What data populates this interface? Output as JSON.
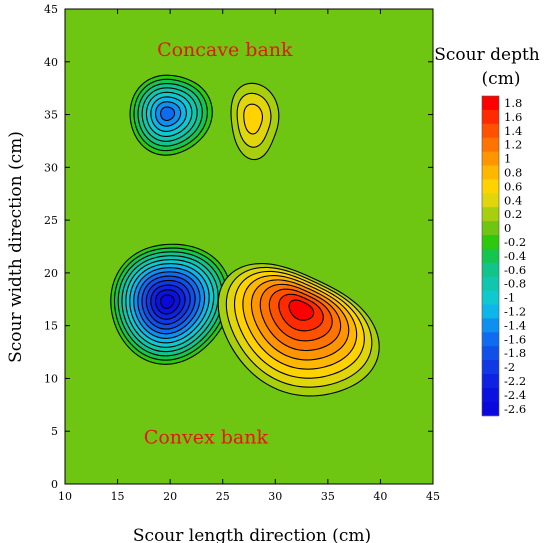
{
  "chart_data": {
    "type": "contour",
    "xlabel": "Scour length direction (cm)",
    "ylabel": "Scour width direction (cm)",
    "xlim": [
      10,
      45
    ],
    "ylim": [
      0,
      45
    ],
    "xticks": [
      "10",
      "15",
      "20",
      "25",
      "30",
      "35",
      "40",
      "45"
    ],
    "yticks": [
      "0",
      "5",
      "10",
      "15",
      "20",
      "25",
      "30",
      "35",
      "40",
      "45"
    ],
    "grid": false,
    "background_level": 0,
    "annotations": [
      {
        "text": "Concave bank",
        "x": 25.2,
        "y": 41.2
      },
      {
        "text": "Convex bank",
        "x": 23.4,
        "y": 4.5
      }
    ],
    "annotation_color": "#e8140a",
    "colorbar": {
      "title_line1": "Scour depth",
      "title_line2": "(cm)",
      "placement": "right",
      "levels": [
        "1.8",
        "1.6",
        "1.4",
        "1.2",
        "1",
        "0.8",
        "0.6",
        "0.4",
        "0.2",
        "0",
        "-0.2",
        "-0.4",
        "-0.6",
        "-0.8",
        "-1",
        "-1.2",
        "-1.4",
        "-1.6",
        "-1.8",
        "-2",
        "-2.2",
        "-2.4",
        "-2.6"
      ],
      "colors": [
        "#ff0000",
        "#ff2a00",
        "#ff5200",
        "#ff7300",
        "#ff9500",
        "#ffb700",
        "#ffd200",
        "#e1d60c",
        "#a8cf0e",
        "#6fc612",
        "#2ec80c",
        "#14c650",
        "#12c48a",
        "#10c7ad",
        "#0ec9cd",
        "#0cb6ea",
        "#0d90f0",
        "#0f6cf0",
        "#1150e8",
        "#1038e4",
        "#0e22e2",
        "#0b12e0",
        "#0a08dc"
      ]
    },
    "features": [
      {
        "name": "upper scour hole",
        "x": 19.8,
        "y": 35.1,
        "min_depth": -1.6
      },
      {
        "name": "upper deposition mound",
        "x": 28.0,
        "y": 34.6,
        "max_depth": 0.6
      },
      {
        "name": "lower scour hole",
        "x": 19.7,
        "y": 17.3,
        "min_depth": -2.6
      },
      {
        "name": "lower deposition mound",
        "x": 32.5,
        "y": 16.7,
        "max_depth": 1.8
      }
    ]
  }
}
